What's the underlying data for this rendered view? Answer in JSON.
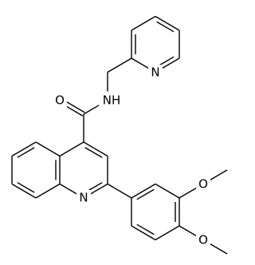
{
  "atoms": {
    "carbonyl_o": "O",
    "amide_n": "NH",
    "pyridine_n": "N",
    "quinoline_n": "N",
    "methoxy_o_3": "O",
    "methoxy_o_4": "O"
  }
}
